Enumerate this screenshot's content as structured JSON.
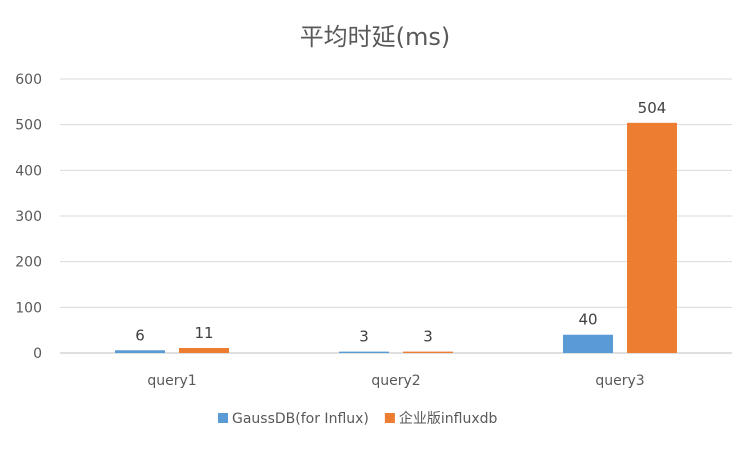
{
  "chart_data": {
    "type": "bar",
    "title": "平均时延(ms)",
    "xlabel": "",
    "ylabel": "",
    "categories": [
      "query1",
      "query2",
      "query3"
    ],
    "series": [
      {
        "name": "GaussDB(for Influx)",
        "values": [
          6,
          3,
          40
        ],
        "color": "#5B9BD5"
      },
      {
        "name": "企业版influxdb",
        "values": [
          11,
          3,
          504
        ],
        "color": "#ED7D31"
      }
    ],
    "ylim": [
      0,
      600
    ],
    "yticks": [
      0,
      100,
      200,
      300,
      400,
      500,
      600
    ],
    "grid": true,
    "legend": "bottom",
    "data_labels": true
  }
}
